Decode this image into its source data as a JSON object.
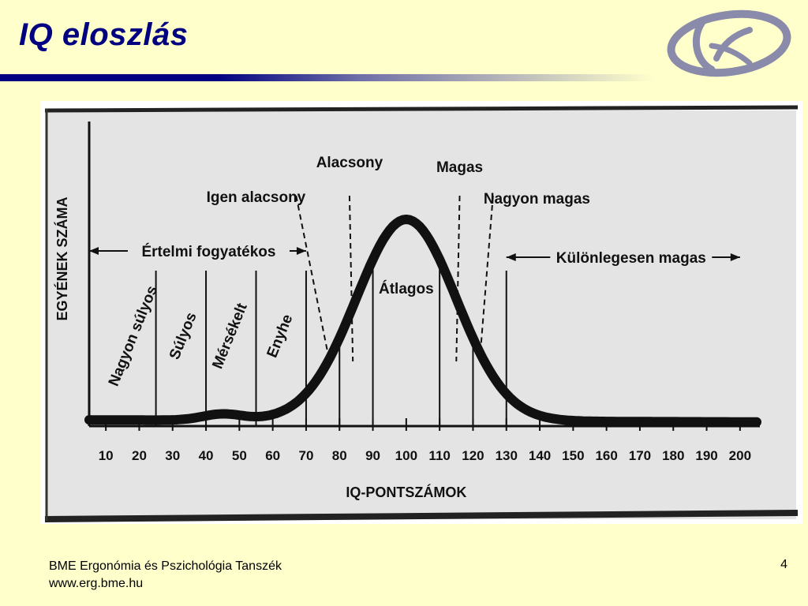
{
  "slide": {
    "title": "IQ eloszlás",
    "footer_line1": "BME Ergonómia és Pszichológia  Tanszék",
    "footer_line2": "www.erg.bme.hu",
    "page_number": "4"
  },
  "colors": {
    "background": "#ffffcc",
    "title": "#000080",
    "logo_ring": "#8a8aaa"
  },
  "logo": {
    "icon": "department-logo-icon"
  },
  "chart_data": {
    "type": "area",
    "title": "",
    "xlabel": "IQ-PONTSZÁMOK",
    "ylabel": "EGYÉNEK SZÁMA",
    "x_ticks": [
      10,
      20,
      30,
      40,
      50,
      60,
      70,
      80,
      90,
      100,
      110,
      120,
      130,
      140,
      150,
      160,
      170,
      180,
      190,
      200
    ],
    "xlim": [
      5,
      205
    ],
    "curve": {
      "mean": 100,
      "sd": 15,
      "baseline_left": 0.03,
      "baseline_right": 0.02,
      "tail_bump_x": 45
    },
    "solid_dividers": [
      25,
      40,
      55,
      70,
      80,
      90,
      110,
      120,
      130
    ],
    "dashed_dividers": [
      {
        "label": "Igen alacsony",
        "top": 67,
        "bottom": 77
      },
      {
        "label": "Alacsony",
        "top": 83,
        "bottom": 84
      },
      {
        "label": "Magas",
        "top": 116,
        "bottom": 115
      },
      {
        "label": "Nagyon magas",
        "top": 126,
        "bottom": 122
      }
    ],
    "categories": [
      {
        "label": "Nagyon súlyos",
        "center": 18,
        "rotated": true
      },
      {
        "label": "Súlyos",
        "center": 33,
        "rotated": true
      },
      {
        "label": "Mérsékelt",
        "center": 47,
        "rotated": true
      },
      {
        "label": "Enyhe",
        "center": 62,
        "rotated": true
      },
      {
        "label": "Átlagos",
        "center": 100,
        "rotated": false
      }
    ],
    "ranges": [
      {
        "label": "Értelmi fogyatékos",
        "from": 5,
        "to": 70
      },
      {
        "label": "Különlegesen magas",
        "from": 130,
        "to": 200
      }
    ]
  }
}
